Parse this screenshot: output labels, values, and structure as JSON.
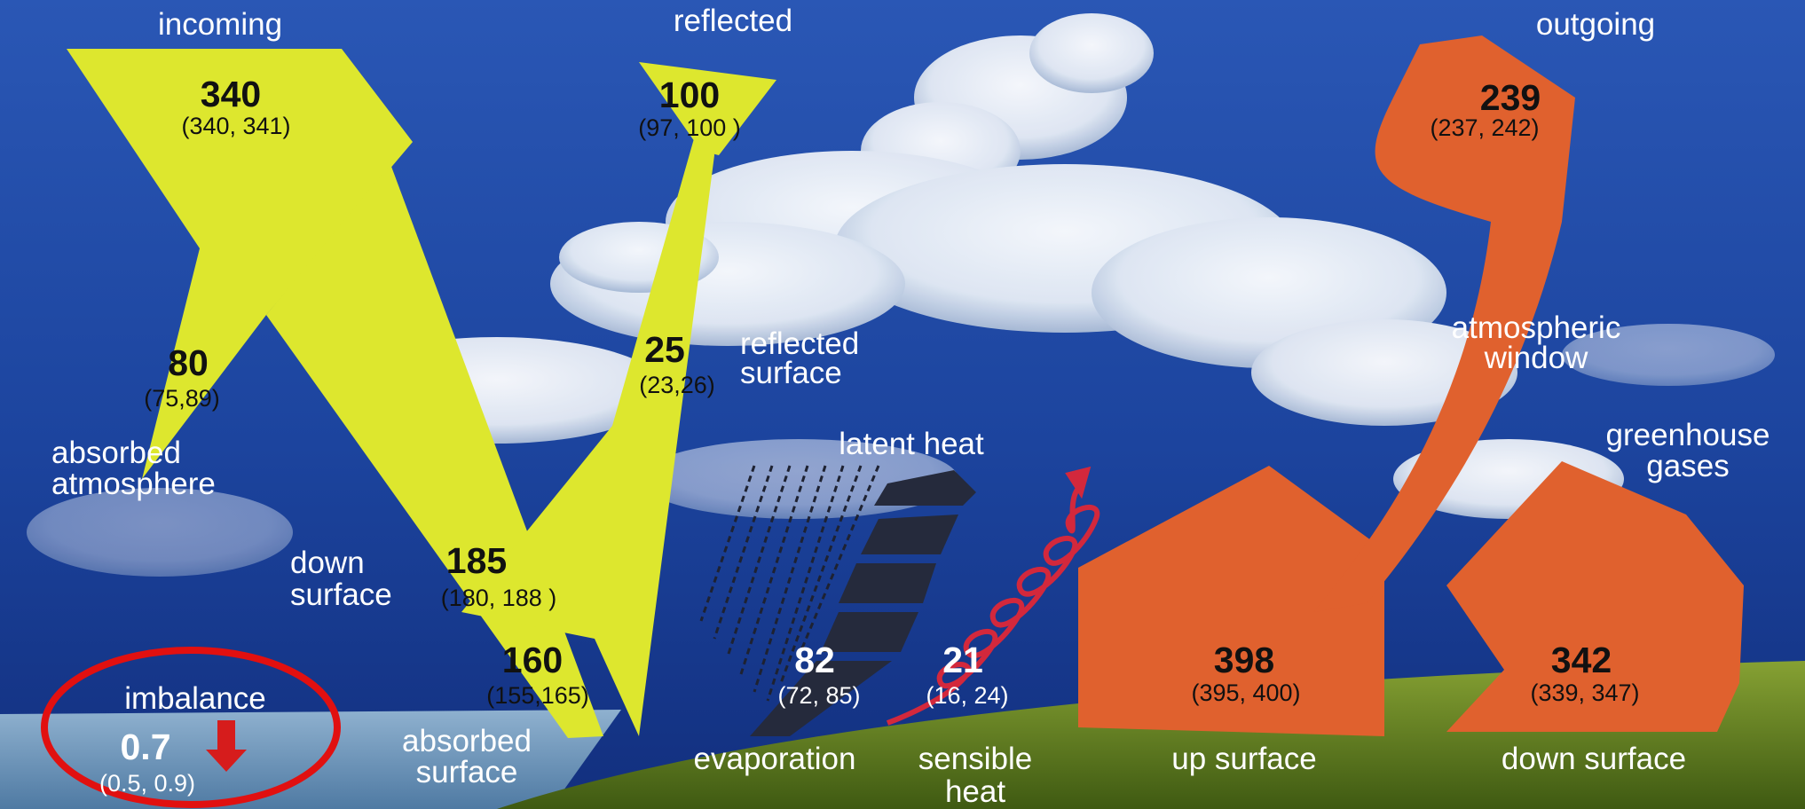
{
  "colors": {
    "sky_top": "#2a57b5",
    "sky_bottom": "#122f7e",
    "shortwave": "#dde72e",
    "longwave": "#e0612e",
    "latent": "#252a3c",
    "sensible": "#d3283c",
    "ocean": "#6f97bb",
    "grass": "#5d7a1e",
    "imbalance_circle": "#e11010"
  },
  "icons": [
    "imbalance-arrow-icon",
    "sensible-heat-spiral-icon",
    "latent-heat-bars-icon",
    "rain-streaks-icon"
  ],
  "diagram": {
    "incoming": {
      "label": "incoming",
      "value": "340",
      "range": "(340, 341)"
    },
    "reflected": {
      "label": "reflected",
      "value": "100",
      "range": "(97, 100 )"
    },
    "outgoing": {
      "label": "outgoing",
      "value": "239",
      "range": "(237, 242)"
    },
    "absorbed_atmosphere": {
      "label_line1": "absorbed",
      "label_line2": "atmosphere",
      "value": "80",
      "range": "(75,89)"
    },
    "reflected_surface": {
      "label_line1": "reflected",
      "label_line2": "surface",
      "value": "25",
      "range": "(23,26)"
    },
    "down_surface_sw": {
      "label_line1": "down",
      "label_line2": "surface",
      "value": "185",
      "range": "(180, 188 )"
    },
    "absorbed_surface": {
      "label_line1": "absorbed",
      "label_line2": "surface",
      "value": "160",
      "range": "(155,165)"
    },
    "latent_heat": {
      "label": "latent heat",
      "caption": "evaporation",
      "value": "82",
      "range": "(72, 85)"
    },
    "sensible_heat": {
      "label_line1": "sensible",
      "label_line2": "heat",
      "value": "21",
      "range": "(16, 24)"
    },
    "atmospheric_window": {
      "label_line1": "atmospheric",
      "label_line2": "window"
    },
    "greenhouse_gases": {
      "label_line1": "greenhouse",
      "label_line2": "gases"
    },
    "up_surface": {
      "label": "up surface",
      "value": "398",
      "range": "(395, 400)"
    },
    "down_surface_lw": {
      "label": "down surface",
      "value": "342",
      "range": "(339, 347)"
    },
    "imbalance": {
      "label": "imbalance",
      "value": "0.7",
      "range": "(0.5, 0.9)"
    }
  }
}
